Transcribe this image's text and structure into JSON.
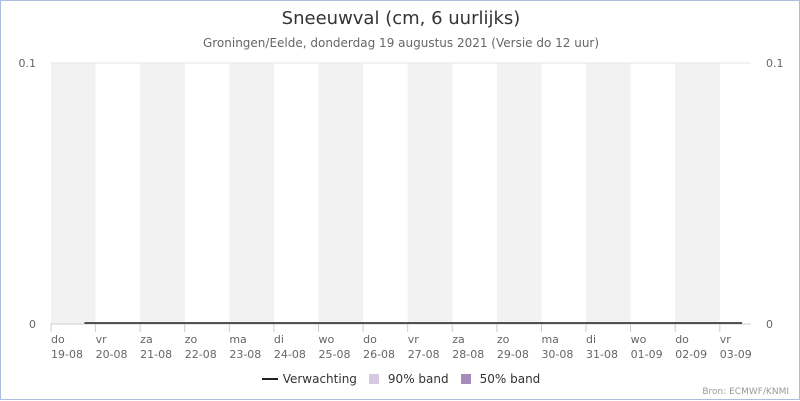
{
  "chart_data": {
    "type": "area",
    "title": "Sneeuwval (cm, 6 uurlijks)",
    "subtitle": "Groningen/Eelde, donderdag 19 augustus 2021 (Versie do 12 uur)",
    "credits": "Bron: ECMWF/KNMI",
    "ylim": [
      0,
      0.1
    ],
    "yticks": [
      "0",
      "0.1"
    ],
    "grid": true,
    "legend_position": "bottom-center",
    "x_days": [
      {
        "day": "do",
        "date": "19-08"
      },
      {
        "day": "vr",
        "date": "20-08"
      },
      {
        "day": "za",
        "date": "21-08"
      },
      {
        "day": "zo",
        "date": "22-08"
      },
      {
        "day": "ma",
        "date": "23-08"
      },
      {
        "day": "di",
        "date": "24-08"
      },
      {
        "day": "wo",
        "date": "25-08"
      },
      {
        "day": "do",
        "date": "26-08"
      },
      {
        "day": "vr",
        "date": "27-08"
      },
      {
        "day": "za",
        "date": "28-08"
      },
      {
        "day": "zo",
        "date": "29-08"
      },
      {
        "day": "ma",
        "date": "30-08"
      },
      {
        "day": "di",
        "date": "31-08"
      },
      {
        "day": "wo",
        "date": "01-09"
      },
      {
        "day": "do",
        "date": "02-09"
      },
      {
        "day": "vr",
        "date": "03-09"
      }
    ],
    "series": [
      {
        "name": "Verwachting",
        "kind": "line",
        "color": "#222222",
        "start_day": "19-08",
        "start_hour": 18,
        "end_day": "03-09",
        "end_hour": 12,
        "value": 0
      },
      {
        "name": "90% band",
        "kind": "band",
        "color": "#d7c9e2",
        "value": [
          0,
          0
        ]
      },
      {
        "name": "50% band",
        "kind": "band",
        "color": "#a58cb8",
        "value": [
          0,
          0
        ]
      }
    ],
    "colors": {
      "shade": "#f2f2f2",
      "grid": "#e6e6e6",
      "axis": "#cccccc"
    }
  }
}
